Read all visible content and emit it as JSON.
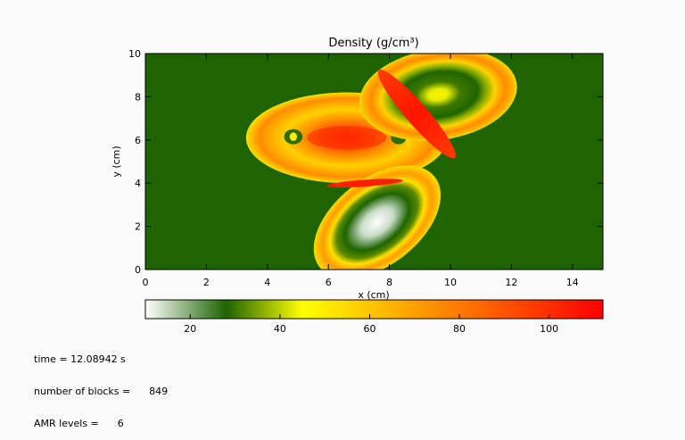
{
  "chart_data": {
    "type": "heatmap",
    "title": "Density (g/cm³)",
    "xlabel": "x (cm)",
    "ylabel": "y (cm)",
    "xlim": [
      0,
      15
    ],
    "ylim": [
      0,
      10
    ],
    "x_ticks": [
      0,
      2,
      4,
      6,
      8,
      10,
      12,
      14
    ],
    "y_ticks": [
      0,
      2,
      4,
      6,
      8,
      10
    ],
    "background_density": 28,
    "colorbar": {
      "range": [
        10,
        112
      ],
      "ticks": [
        20,
        40,
        60,
        80,
        100
      ],
      "stops": [
        {
          "value": 10,
          "color": "#ffffff"
        },
        {
          "value": 28,
          "color": "#1e6400"
        },
        {
          "value": 45,
          "color": "#ffff00"
        },
        {
          "value": 75,
          "color": "#ff8c00"
        },
        {
          "value": 112,
          "color": "#ff0000"
        }
      ]
    },
    "features": [
      {
        "name": "left ellipse",
        "center": [
          6.6,
          6.1
        ],
        "outer_density": 45,
        "rim_density": 55,
        "core_density": 100
      },
      {
        "name": "upper-right ring",
        "center": [
          9.6,
          8.1
        ],
        "outer_density": 45,
        "rim_density": 55,
        "core_density": 42
      },
      {
        "name": "lower capsule",
        "center": [
          7.6,
          2.2
        ],
        "outer_density": 45,
        "rim_density": 55,
        "core_density": 12
      },
      {
        "name": "collision band NE",
        "center": [
          8.9,
          7.2
        ],
        "density": 105
      },
      {
        "name": "collision band S",
        "center": [
          7.2,
          4.0
        ],
        "density": 108
      }
    ]
  },
  "info": {
    "time_label": "time =",
    "time_value": "12.08942 s",
    "blocks_label": "number of blocks =",
    "blocks_value": "849",
    "amr_label": "AMR levels =",
    "amr_value": "6"
  }
}
